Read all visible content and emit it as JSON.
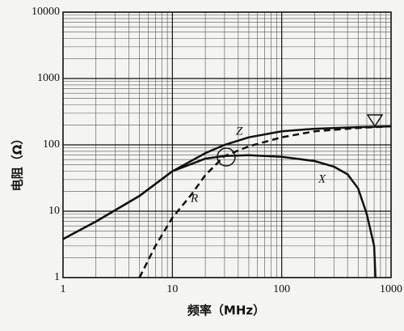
{
  "chart_data": {
    "type": "line",
    "x_label": "频率（MHz）",
    "y_label": "电阻（Ω）",
    "xscale": "log",
    "yscale": "log",
    "grid": true,
    "xlim": [
      1,
      1000
    ],
    "ylim": [
      1,
      10000
    ],
    "xticks": [
      1,
      10,
      100,
      1000
    ],
    "yticks": [
      1,
      10,
      100,
      1000,
      10000
    ],
    "series": [
      {
        "name": "Z",
        "color": "#111111",
        "dashed": false,
        "x": [
          1,
          2,
          5,
          10,
          20,
          30,
          50,
          100,
          200,
          500,
          1000
        ],
        "values": [
          3.8,
          7,
          17,
          40,
          75,
          100,
          130,
          160,
          175,
          185,
          190
        ]
      },
      {
        "name": "X",
        "color": "#111111",
        "dashed": false,
        "x": [
          1,
          2,
          5,
          10,
          20,
          30,
          50,
          100,
          200,
          300,
          400,
          500,
          600,
          700,
          720
        ],
        "values": [
          3.8,
          7,
          17,
          40,
          62,
          68,
          70,
          66,
          57,
          47,
          36,
          22,
          9,
          3,
          1
        ]
      },
      {
        "name": "R",
        "color": "#111111",
        "dashed": true,
        "x": [
          5,
          7,
          10,
          15,
          20,
          30,
          50,
          100,
          200,
          500,
          1000
        ],
        "values": [
          1,
          3,
          8,
          18,
          35,
          68,
          95,
          130,
          160,
          180,
          190
        ]
      }
    ]
  }
}
